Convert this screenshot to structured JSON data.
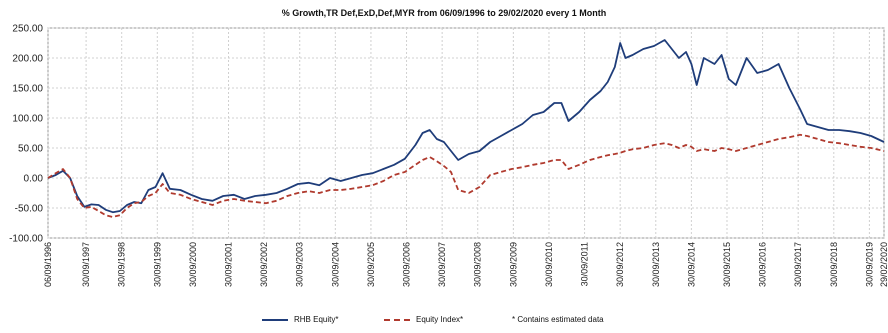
{
  "chart_data": {
    "type": "line",
    "title": "% Growth,TR Def,ExD,Def,MYR from 06/09/1996 to 29/02/2020 every 1 Month",
    "xlabel": "",
    "ylabel": "",
    "xlim": [
      1996.68,
      2020.16
    ],
    "ylim": [
      -100,
      250
    ],
    "yticks": [
      -100,
      -50,
      0,
      50,
      100,
      150,
      200,
      250
    ],
    "ytick_labels": [
      "-100.00",
      "-50.00",
      "0.00",
      "50.00",
      "100.00",
      "150.00",
      "200.00",
      "250.00"
    ],
    "xticks": [
      1996.68,
      1997.75,
      1998.75,
      1999.75,
      2000.75,
      2001.75,
      2002.75,
      2003.75,
      2004.75,
      2005.75,
      2006.75,
      2007.75,
      2008.75,
      2009.75,
      2010.75,
      2011.75,
      2012.75,
      2013.75,
      2014.75,
      2015.75,
      2016.75,
      2017.75,
      2018.75,
      2019.75,
      2020.16
    ],
    "xtick_labels": [
      "06/09/1996",
      "30/09/1997",
      "30/09/1998",
      "30/09/1999",
      "30/09/2000",
      "30/09/2001",
      "30/09/2002",
      "30/09/2003",
      "30/09/2004",
      "30/09/2005",
      "30/09/2006",
      "30/09/2007",
      "30/09/2008",
      "30/09/2009",
      "30/09/2010",
      "30/09/2011",
      "30/09/2012",
      "30/09/2013",
      "30/09/2014",
      "30/09/2015",
      "30/09/2016",
      "30/09/2017",
      "30/09/2018",
      "30/09/2019",
      "29/02/2020"
    ],
    "grid": true,
    "legend_position": "bottom",
    "series": [
      {
        "name": "RHB Equity*",
        "color": "#1f3d7a",
        "style": "solid",
        "x": [
          1996.68,
          1996.9,
          1997.1,
          1997.3,
          1997.5,
          1997.7,
          1997.9,
          1998.1,
          1998.3,
          1998.5,
          1998.7,
          1998.9,
          1999.1,
          1999.3,
          1999.5,
          1999.7,
          1999.9,
          2000.1,
          2000.4,
          2000.7,
          2001.0,
          2001.3,
          2001.6,
          2001.9,
          2002.2,
          2002.5,
          2002.8,
          2003.1,
          2003.4,
          2003.7,
          2004.0,
          2004.3,
          2004.6,
          2004.9,
          2005.2,
          2005.5,
          2005.8,
          2006.1,
          2006.4,
          2006.7,
          2007.0,
          2007.2,
          2007.4,
          2007.6,
          2007.8,
          2008.0,
          2008.2,
          2008.5,
          2008.8,
          2009.1,
          2009.4,
          2009.7,
          2010.0,
          2010.3,
          2010.6,
          2010.9,
          2011.1,
          2011.3,
          2011.6,
          2011.9,
          2012.2,
          2012.4,
          2012.6,
          2012.75,
          2012.9,
          2013.1,
          2013.4,
          2013.7,
          2014.0,
          2014.2,
          2014.4,
          2014.6,
          2014.75,
          2014.9,
          2015.1,
          2015.4,
          2015.6,
          2015.8,
          2016.0,
          2016.3,
          2016.6,
          2016.9,
          2017.2,
          2017.5,
          2017.8,
          2018.0,
          2018.3,
          2018.6,
          2018.9,
          2019.2,
          2019.5,
          2019.8,
          2020.16
        ],
        "values": [
          0,
          5,
          12,
          0,
          -30,
          -48,
          -44,
          -45,
          -53,
          -57,
          -55,
          -45,
          -40,
          -42,
          -20,
          -15,
          8,
          -18,
          -20,
          -28,
          -35,
          -38,
          -30,
          -28,
          -35,
          -30,
          -28,
          -25,
          -18,
          -10,
          -8,
          -12,
          0,
          -5,
          0,
          5,
          8,
          15,
          22,
          32,
          55,
          75,
          80,
          65,
          60,
          45,
          30,
          40,
          45,
          60,
          70,
          80,
          90,
          105,
          110,
          125,
          125,
          95,
          110,
          130,
          145,
          160,
          185,
          225,
          200,
          205,
          215,
          220,
          230,
          215,
          200,
          210,
          190,
          155,
          200,
          190,
          205,
          165,
          155,
          200,
          175,
          180,
          190,
          150,
          115,
          90,
          85,
          80,
          80,
          78,
          75,
          70,
          60
        ]
      },
      {
        "name": "Equity Index*",
        "color": "#b03a2e",
        "style": "dashed",
        "x": [
          1996.68,
          1996.9,
          1997.1,
          1997.3,
          1997.5,
          1997.7,
          1997.9,
          1998.1,
          1998.3,
          1998.5,
          1998.7,
          1998.9,
          1999.1,
          1999.3,
          1999.5,
          1999.7,
          1999.9,
          2000.1,
          2000.4,
          2000.7,
          2001.0,
          2001.3,
          2001.6,
          2001.9,
          2002.2,
          2002.5,
          2002.8,
          2003.1,
          2003.4,
          2003.7,
          2004.0,
          2004.3,
          2004.6,
          2004.9,
          2005.2,
          2005.5,
          2005.8,
          2006.1,
          2006.4,
          2006.7,
          2007.0,
          2007.2,
          2007.4,
          2007.6,
          2007.8,
          2008.0,
          2008.2,
          2008.5,
          2008.8,
          2009.1,
          2009.4,
          2009.7,
          2010.0,
          2010.3,
          2010.6,
          2010.9,
          2011.1,
          2011.3,
          2011.6,
          2011.9,
          2012.2,
          2012.4,
          2012.6,
          2012.75,
          2012.9,
          2013.1,
          2013.4,
          2013.7,
          2014.0,
          2014.2,
          2014.4,
          2014.6,
          2014.75,
          2014.9,
          2015.1,
          2015.4,
          2015.6,
          2015.8,
          2016.0,
          2016.3,
          2016.6,
          2016.9,
          2017.2,
          2017.5,
          2017.8,
          2018.0,
          2018.3,
          2018.6,
          2018.9,
          2019.2,
          2019.5,
          2019.8,
          2020.16
        ],
        "values": [
          0,
          8,
          15,
          0,
          -35,
          -50,
          -48,
          -55,
          -62,
          -65,
          -62,
          -50,
          -42,
          -40,
          -30,
          -25,
          -10,
          -25,
          -28,
          -35,
          -40,
          -45,
          -38,
          -35,
          -38,
          -40,
          -42,
          -38,
          -30,
          -25,
          -22,
          -25,
          -20,
          -20,
          -18,
          -15,
          -12,
          -5,
          5,
          10,
          22,
          30,
          35,
          28,
          20,
          10,
          -20,
          -25,
          -15,
          5,
          10,
          15,
          18,
          22,
          25,
          30,
          30,
          15,
          22,
          30,
          35,
          38,
          40,
          42,
          45,
          48,
          50,
          55,
          58,
          55,
          50,
          55,
          52,
          45,
          48,
          45,
          50,
          48,
          45,
          50,
          55,
          60,
          65,
          68,
          72,
          70,
          65,
          60,
          58,
          55,
          52,
          50,
          45
        ]
      }
    ],
    "note": "* Contains estimated data"
  }
}
